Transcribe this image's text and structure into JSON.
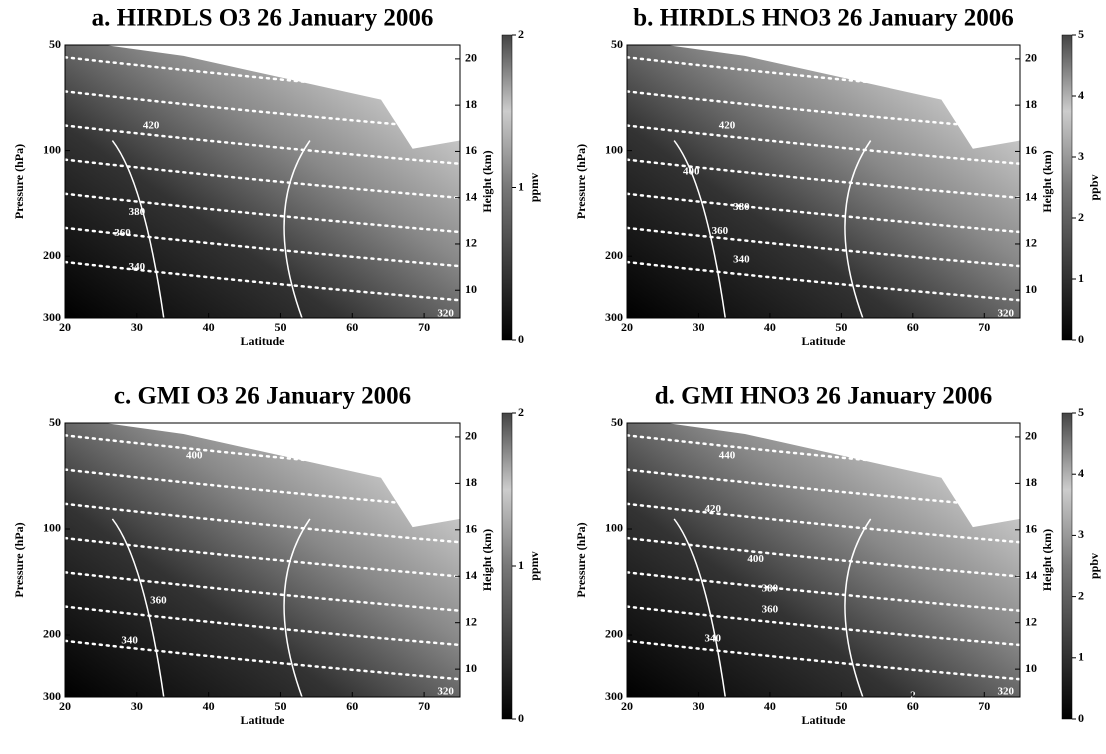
{
  "chart_data": [
    {
      "type": "contour",
      "title": "a. HIRDLS O3 26 January 2006",
      "xlabel": "Latitude",
      "ylabel": "Pressure (hPa)",
      "y2label": "Height (km)",
      "xlim": [
        20,
        75
      ],
      "xticks": [
        20,
        30,
        40,
        50,
        60,
        70
      ],
      "ylim": [
        300,
        50
      ],
      "yticks": [
        50,
        100,
        200,
        300
      ],
      "ylog": true,
      "y2lim": [
        8.8,
        20.6
      ],
      "y2ticks": [
        10,
        12,
        14,
        16,
        18,
        20
      ],
      "colorbar": {
        "label": "ppmv",
        "lim": [
          0,
          2
        ],
        "ticks": [
          0,
          1,
          2
        ]
      },
      "annotations": [
        {
          "text": "420",
          "x": 32,
          "y": 85
        },
        {
          "text": "380",
          "x": 30,
          "y": 150
        },
        {
          "text": "360",
          "x": 28,
          "y": 172
        },
        {
          "text": "340",
          "x": 30,
          "y": 215
        },
        {
          "text": "320",
          "x": 73,
          "y": 292
        }
      ]
    },
    {
      "type": "contour",
      "title": "b. HIRDLS HNO3 26 January 2006",
      "xlabel": "Latitude",
      "ylabel": "Pressure (hPa)",
      "y2label": "Height (km)",
      "xlim": [
        20,
        75
      ],
      "xticks": [
        20,
        30,
        40,
        50,
        60,
        70
      ],
      "ylim": [
        300,
        50
      ],
      "yticks": [
        50,
        100,
        200,
        300
      ],
      "ylog": true,
      "y2lim": [
        8.8,
        20.6
      ],
      "y2ticks": [
        10,
        12,
        14,
        16,
        18,
        20
      ],
      "colorbar": {
        "label": "ppbv",
        "lim": [
          0,
          5
        ],
        "ticks": [
          0,
          1,
          2,
          3,
          4,
          5
        ]
      },
      "annotations": [
        {
          "text": "420",
          "x": 34,
          "y": 85
        },
        {
          "text": "400",
          "x": 29,
          "y": 115
        },
        {
          "text": "380",
          "x": 36,
          "y": 145
        },
        {
          "text": "360",
          "x": 33,
          "y": 170
        },
        {
          "text": "340",
          "x": 36,
          "y": 205
        },
        {
          "text": "320",
          "x": 73,
          "y": 292
        }
      ]
    },
    {
      "type": "contour",
      "title": "c. GMI O3 26 January 2006",
      "xlabel": "Latitude",
      "ylabel": "Pressure (hPa)",
      "y2label": "Height (km)",
      "xlim": [
        20,
        75
      ],
      "xticks": [
        20,
        30,
        40,
        50,
        60,
        70
      ],
      "ylim": [
        300,
        50
      ],
      "yticks": [
        50,
        100,
        200,
        300
      ],
      "ylog": true,
      "y2lim": [
        8.8,
        20.6
      ],
      "y2ticks": [
        10,
        12,
        14,
        16,
        18,
        20
      ],
      "colorbar": {
        "label": "ppmv",
        "lim": [
          0,
          2
        ],
        "ticks": [
          0,
          1,
          2
        ]
      },
      "annotations": [
        {
          "text": "400",
          "x": 38,
          "y": 62
        },
        {
          "text": "360",
          "x": 33,
          "y": 160
        },
        {
          "text": "340",
          "x": 29,
          "y": 208
        },
        {
          "text": "320",
          "x": 73,
          "y": 290
        }
      ]
    },
    {
      "type": "contour",
      "title": "d. GMI HNO3 26 January 2006",
      "xlabel": "Latitude",
      "ylabel": "Pressure (hPa)",
      "y2label": "Height (km)",
      "xlim": [
        20,
        75
      ],
      "xticks": [
        20,
        30,
        40,
        50,
        60,
        70
      ],
      "ylim": [
        300,
        50
      ],
      "yticks": [
        50,
        100,
        200,
        300
      ],
      "ylog": true,
      "y2lim": [
        8.8,
        20.6
      ],
      "y2ticks": [
        10,
        12,
        14,
        16,
        18,
        20
      ],
      "colorbar": {
        "label": "ppbv",
        "lim": [
          0,
          5
        ],
        "ticks": [
          0,
          1,
          2,
          3,
          4,
          5
        ]
      },
      "annotations": [
        {
          "text": "440",
          "x": 34,
          "y": 62
        },
        {
          "text": "420",
          "x": 32,
          "y": 88
        },
        {
          "text": "400",
          "x": 38,
          "y": 122
        },
        {
          "text": "380",
          "x": 40,
          "y": 148
        },
        {
          "text": "360",
          "x": 40,
          "y": 170
        },
        {
          "text": "340",
          "x": 32,
          "y": 205
        },
        {
          "text": "320",
          "x": 73,
          "y": 290
        },
        {
          "text": "2",
          "x": 60,
          "y": 298
        }
      ]
    }
  ]
}
